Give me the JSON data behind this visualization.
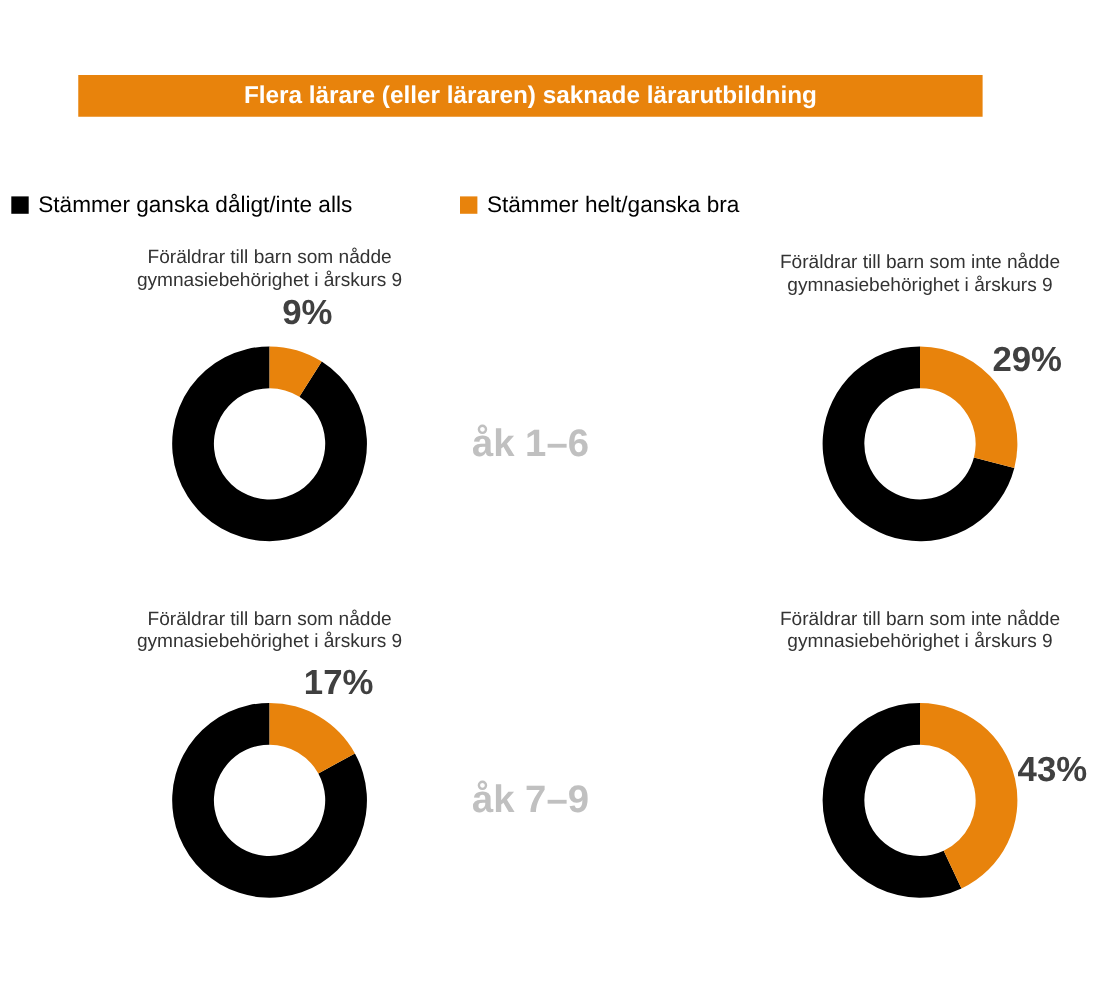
{
  "chart_data": [
    {
      "type": "other",
      "title": "Flera lärare (eller läraren) saknade lärarutbildning",
      "color": "#e8830c"
    },
    {
      "type": "donut",
      "title": "Föräldrar till barn som nådde\ngymnasiebehörighet i årskurs 9",
      "categories": [
        "Stämmer ganska dåligt/inte alls",
        "Stämmer helt/ganska bra"
      ],
      "values": [
        91,
        9
      ],
      "colors": [
        "#000000",
        "#e8830c"
      ],
      "value_labels": [
        null,
        "9%"
      ],
      "legend": "top",
      "annotations": [
        "åk 1–6"
      ]
    },
    {
      "type": "donut",
      "title": "Föräldrar till barn som inte nådde\ngymnasiebehörighet i årskurs 9",
      "categories": [
        null,
        null
      ],
      "values": [
        71,
        29
      ],
      "colors": [
        "#000000",
        "#e8830c"
      ],
      "value_labels": [
        null,
        "29%"
      ]
    },
    {
      "type": "donut",
      "title": "Föräldrar till barn som nådde\ngymnasiebehörighet i årskurs 9",
      "categories": [
        null,
        null
      ],
      "values": [
        83,
        17
      ],
      "colors": [
        "#000000",
        "#e8830c"
      ],
      "value_labels": [
        null,
        "17%"
      ],
      "annotations": [
        "åk 7–9"
      ]
    },
    {
      "type": "donut",
      "title": "Föräldrar till barn som inte nådde\ngymnasiebehörighet i årskurs 9",
      "categories": [
        null,
        null
      ],
      "values": [
        57,
        43
      ],
      "colors": [
        "#000000",
        "#e8830c"
      ],
      "value_labels": [
        null,
        "43%"
      ]
    }
  ]
}
